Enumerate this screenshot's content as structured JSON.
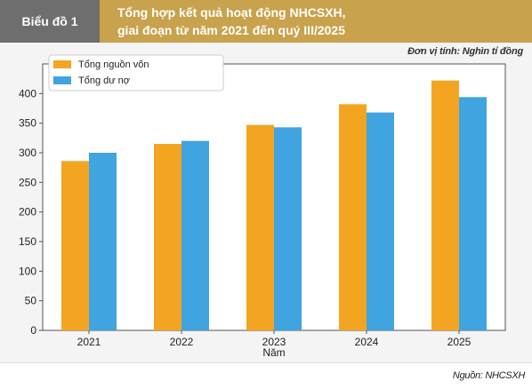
{
  "header": {
    "label": "Biểu đồ 1",
    "title_line1": "Tổng hợp kết quả hoạt động NHCSXH,",
    "title_line2": "giai đoạn từ năm 2021 đến quý III/2025",
    "unit": "Đơn vị tính: Nghìn tỉ đồng"
  },
  "source": "Nguồn: NHCSXH",
  "colors": {
    "series_1": "#f3a521",
    "series_2": "#3fa4e0",
    "title_band": "#c8a24c",
    "label_band": "#6e6e6e"
  },
  "chart_data": {
    "type": "bar",
    "categories": [
      "2021",
      "2022",
      "2023",
      "2024",
      "2025"
    ],
    "series": [
      {
        "name": "Tổng nguồn vốn",
        "values": [
          286,
          315,
          347,
          382,
          422
        ]
      },
      {
        "name": "Tổng dư nợ",
        "values": [
          300,
          320,
          343,
          368,
          394
        ]
      }
    ],
    "xlabel": "Năm",
    "ylabel": "",
    "ylim": [
      0,
      450
    ],
    "yticks": [
      0,
      50,
      100,
      150,
      200,
      250,
      300,
      350,
      400
    ],
    "grid": false,
    "legend": "top-left"
  }
}
